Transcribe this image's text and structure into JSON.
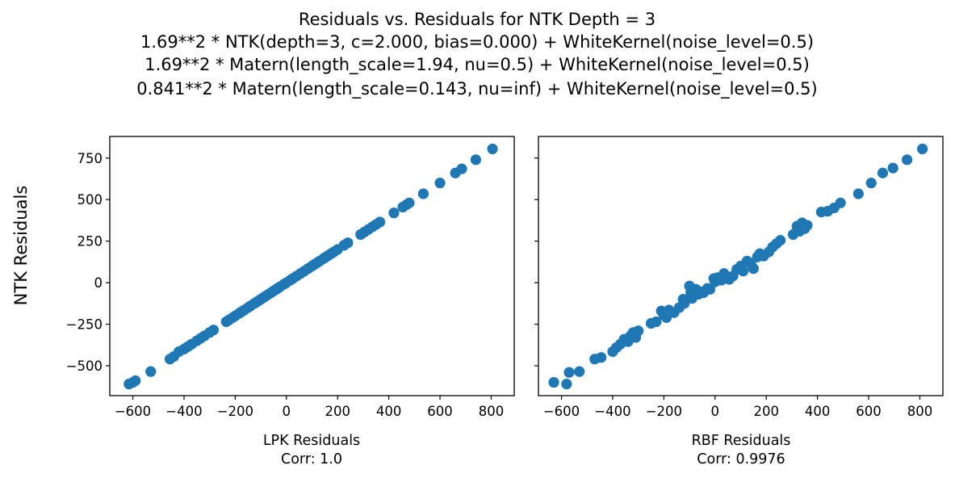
{
  "figure": {
    "title_lines": [
      "Residuals vs. Residuals for NTK Depth = 3",
      "1.69**2 * NTK(depth=3, c=2.000, bias=0.000) + WhiteKernel(noise_level=0.5)",
      "1.69**2 * Matern(length_scale=1.94, nu=0.5) + WhiteKernel(noise_level=0.5)",
      "0.841**2 * Matern(length_scale=0.143, nu=inf) + WhiteKernel(noise_level=0.5)"
    ],
    "shared_ylabel": "NTK Residuals"
  },
  "chart_data": [
    {
      "type": "scatter",
      "xlabel": "LPK Residuals",
      "xlabel_note": "Corr: 1.0",
      "ylabel": "NTK Residuals",
      "xlim": [
        -690,
        890
      ],
      "ylim": [
        -680,
        880
      ],
      "xticks": [
        -600,
        -400,
        -200,
        0,
        200,
        400,
        600,
        800
      ],
      "yticks": [
        -500,
        -250,
        0,
        250,
        500,
        750
      ],
      "xtick_labels": [
        "−600",
        "−400",
        "−200",
        "0",
        "200",
        "400",
        "600",
        "800"
      ],
      "ytick_labels": [
        "−500",
        "−250",
        "0",
        "250",
        "500",
        "750"
      ],
      "color": "#1f77b4",
      "points": [
        [
          -615,
          -610
        ],
        [
          -600,
          -600
        ],
        [
          -590,
          -590
        ],
        [
          -530,
          -535
        ],
        [
          -455,
          -460
        ],
        [
          -440,
          -445
        ],
        [
          -420,
          -415
        ],
        [
          -400,
          -400
        ],
        [
          -385,
          -385
        ],
        [
          -370,
          -370
        ],
        [
          -350,
          -350
        ],
        [
          -335,
          -335
        ],
        [
          -320,
          -320
        ],
        [
          -300,
          -300
        ],
        [
          -285,
          -285
        ],
        [
          -235,
          -235
        ],
        [
          -225,
          -225
        ],
        [
          -210,
          -210
        ],
        [
          -200,
          -200
        ],
        [
          -185,
          -185
        ],
        [
          -175,
          -175
        ],
        [
          -165,
          -165
        ],
        [
          -150,
          -150
        ],
        [
          -140,
          -140
        ],
        [
          -125,
          -125
        ],
        [
          -115,
          -115
        ],
        [
          -105,
          -105
        ],
        [
          -95,
          -95
        ],
        [
          -85,
          -85
        ],
        [
          -75,
          -75
        ],
        [
          -65,
          -65
        ],
        [
          -55,
          -55
        ],
        [
          -45,
          -45
        ],
        [
          -35,
          -35
        ],
        [
          -25,
          -25
        ],
        [
          -10,
          -10
        ],
        [
          0,
          0
        ],
        [
          15,
          15
        ],
        [
          25,
          25
        ],
        [
          40,
          40
        ],
        [
          55,
          55
        ],
        [
          70,
          70
        ],
        [
          85,
          85
        ],
        [
          100,
          100
        ],
        [
          110,
          110
        ],
        [
          120,
          120
        ],
        [
          130,
          130
        ],
        [
          145,
          145
        ],
        [
          155,
          155
        ],
        [
          165,
          165
        ],
        [
          175,
          175
        ],
        [
          185,
          185
        ],
        [
          200,
          200
        ],
        [
          225,
          225
        ],
        [
          240,
          240
        ],
        [
          290,
          290
        ],
        [
          305,
          305
        ],
        [
          320,
          320
        ],
        [
          335,
          335
        ],
        [
          350,
          350
        ],
        [
          365,
          365
        ],
        [
          420,
          420
        ],
        [
          455,
          455
        ],
        [
          470,
          470
        ],
        [
          480,
          480
        ],
        [
          535,
          535
        ],
        [
          600,
          600
        ],
        [
          660,
          660
        ],
        [
          685,
          685
        ],
        [
          740,
          740
        ],
        [
          805,
          805
        ]
      ]
    },
    {
      "type": "scatter",
      "xlabel": "RBF Residuals",
      "xlabel_note": "Corr: 0.9976",
      "ylabel": "",
      "xlim": [
        -690,
        890
      ],
      "ylim": [
        -680,
        880
      ],
      "xticks": [
        -600,
        -400,
        -200,
        0,
        200,
        400,
        600,
        800
      ],
      "yticks": [
        -500,
        -250,
        0,
        250,
        500,
        750
      ],
      "xtick_labels": [
        "−600",
        "−400",
        "−200",
        "0",
        "200",
        "400",
        "600",
        "800"
      ],
      "ytick_labels": [
        "",
        "",
        "",
        "",
        "",
        ""
      ],
      "color": "#1f77b4",
      "points": [
        [
          -630,
          -600
        ],
        [
          -580,
          -610
        ],
        [
          -570,
          -540
        ],
        [
          -530,
          -535
        ],
        [
          -470,
          -460
        ],
        [
          -445,
          -450
        ],
        [
          -400,
          -415
        ],
        [
          -385,
          -390
        ],
        [
          -370,
          -370
        ],
        [
          -355,
          -340
        ],
        [
          -340,
          -355
        ],
        [
          -330,
          -320
        ],
        [
          -320,
          -300
        ],
        [
          -310,
          -330
        ],
        [
          -300,
          -290
        ],
        [
          -250,
          -245
        ],
        [
          -230,
          -235
        ],
        [
          -210,
          -170
        ],
        [
          -200,
          -195
        ],
        [
          -190,
          -210
        ],
        [
          -180,
          -165
        ],
        [
          -160,
          -180
        ],
        [
          -140,
          -150
        ],
        [
          -125,
          -100
        ],
        [
          -120,
          -125
        ],
        [
          -100,
          -20
        ],
        [
          -95,
          -60
        ],
        [
          -90,
          -95
        ],
        [
          -85,
          -80
        ],
        [
          -75,
          -40
        ],
        [
          -65,
          -70
        ],
        [
          -55,
          -55
        ],
        [
          -45,
          -60
        ],
        [
          -30,
          -35
        ],
        [
          -20,
          -40
        ],
        [
          -5,
          25
        ],
        [
          0,
          5
        ],
        [
          10,
          30
        ],
        [
          25,
          15
        ],
        [
          35,
          55
        ],
        [
          55,
          20
        ],
        [
          70,
          40
        ],
        [
          85,
          80
        ],
        [
          100,
          100
        ],
        [
          110,
          70
        ],
        [
          125,
          130
        ],
        [
          140,
          115
        ],
        [
          150,
          85
        ],
        [
          165,
          155
        ],
        [
          175,
          175
        ],
        [
          190,
          160
        ],
        [
          210,
          185
        ],
        [
          225,
          215
        ],
        [
          240,
          235
        ],
        [
          255,
          255
        ],
        [
          305,
          290
        ],
        [
          320,
          340
        ],
        [
          330,
          310
        ],
        [
          340,
          360
        ],
        [
          350,
          325
        ],
        [
          360,
          345
        ],
        [
          415,
          425
        ],
        [
          440,
          430
        ],
        [
          465,
          450
        ],
        [
          490,
          480
        ],
        [
          560,
          535
        ],
        [
          610,
          600
        ],
        [
          655,
          660
        ],
        [
          695,
          690
        ],
        [
          750,
          740
        ],
        [
          810,
          805
        ]
      ]
    }
  ]
}
